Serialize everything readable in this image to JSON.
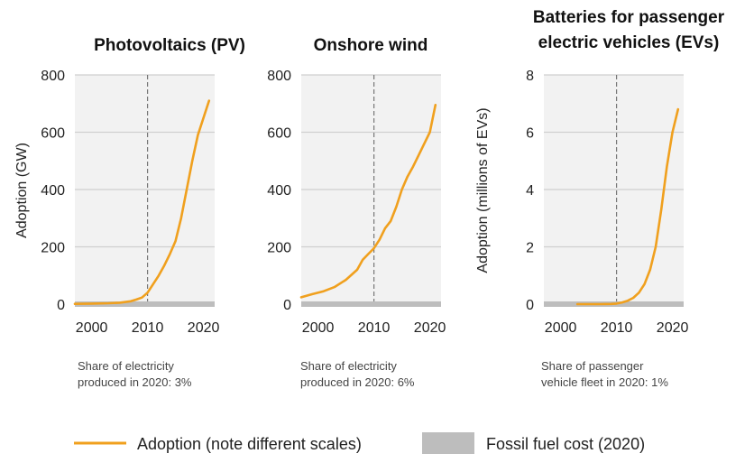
{
  "legend": {
    "adoption_label": "Adoption (note different scales)",
    "fossil_label": "Fossil fuel cost (2020)"
  },
  "colors": {
    "adoption": "#F0A01E",
    "fossil_band": "#BDBDBD",
    "plot_bg": "#F2F2F2",
    "grid": "#CFCFCF",
    "ref_line": "#777777"
  },
  "chart_data": [
    {
      "type": "line",
      "title": "Photovoltaics (PV)",
      "ylabel": "Adoption (GW)",
      "xlim": [
        1997,
        2022
      ],
      "ylim": [
        0,
        800
      ],
      "xticks": [
        "2000",
        "2010",
        "2020"
      ],
      "yticks": [
        "0",
        "200",
        "400",
        "600",
        "800"
      ],
      "ref_year": 2010,
      "note": [
        "Share of electricity",
        "produced in 2020: 3%"
      ],
      "series": [
        {
          "x": [
            1997,
            2000,
            2003,
            2005,
            2007,
            2008,
            2009,
            2010,
            2011,
            2012,
            2013,
            2014,
            2015,
            2016,
            2017,
            2018,
            2019,
            2020,
            2021
          ],
          "y": [
            1,
            2,
            3,
            5,
            10,
            16,
            23,
            40,
            70,
            100,
            135,
            175,
            220,
            300,
            400,
            500,
            590,
            650,
            710
          ]
        }
      ]
    },
    {
      "type": "line",
      "title": "Onshore wind",
      "ylabel": "",
      "xlim": [
        1997,
        2022
      ],
      "ylim": [
        0,
        800
      ],
      "xticks": [
        "2000",
        "2010",
        "2020"
      ],
      "yticks": [
        "0",
        "200",
        "400",
        "600",
        "800"
      ],
      "ref_year": 2010,
      "note": [
        "Share of electricity",
        "produced in 2020: 6%"
      ],
      "series": [
        {
          "x": [
            1997,
            1999,
            2001,
            2003,
            2005,
            2007,
            2008,
            2009,
            2010,
            2011,
            2012,
            2013,
            2014,
            2015,
            2016,
            2017,
            2018,
            2019,
            2020,
            2021
          ],
          "y": [
            24,
            35,
            45,
            60,
            85,
            120,
            155,
            175,
            195,
            225,
            265,
            290,
            340,
            400,
            445,
            480,
            520,
            560,
            600,
            695
          ]
        }
      ]
    },
    {
      "type": "line",
      "title": "Batteries for passenger electric vehicles (EVs)",
      "ylabel": "Adoption (millions of EVs)",
      "xlim": [
        1997,
        2022
      ],
      "ylim": [
        0,
        8
      ],
      "xticks": [
        "2000",
        "2010",
        "2020"
      ],
      "yticks": [
        "0",
        "2",
        "4",
        "6",
        "8"
      ],
      "ref_year": 2010,
      "note": [
        "Share of passenger",
        "vehicle fleet in 2020: 1%"
      ],
      "series": [
        {
          "x": [
            2003,
            2007,
            2009,
            2010,
            2011,
            2012,
            2013,
            2014,
            2015,
            2016,
            2017,
            2018,
            2019,
            2020,
            2021
          ],
          "y": [
            0,
            0,
            0.005,
            0.02,
            0.06,
            0.12,
            0.22,
            0.4,
            0.7,
            1.2,
            2.0,
            3.3,
            4.8,
            6.0,
            6.8
          ]
        }
      ]
    }
  ]
}
